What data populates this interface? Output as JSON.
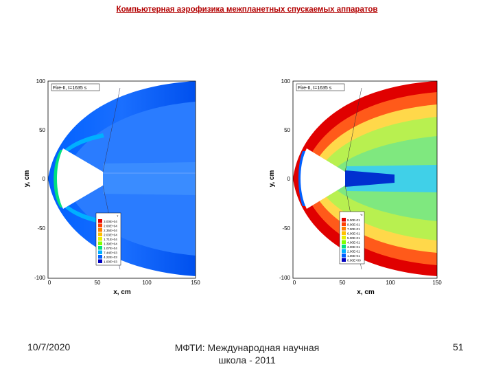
{
  "slide": {
    "title": "Компьютерная аэрофизика межпланетных спускаемых аппаратов",
    "footer_date": "10/7/2020",
    "footer_center_line1": "МФТИ: Международная научная",
    "footer_center_line2": "школа - 2011",
    "page_number": "51"
  },
  "chart_data": [
    {
      "type": "heatmap",
      "title": "Fire-II, t=1635 s",
      "xlabel": "x, cm",
      "ylabel": "y, cm",
      "xlim": [
        0,
        150
      ],
      "ylim": [
        -100,
        100
      ],
      "x_ticks": [
        "0",
        "50",
        "100",
        "150"
      ],
      "y_ticks": [
        "100",
        "50",
        "0",
        "-50",
        "-100"
      ],
      "legend_title": "T",
      "legend_position": "bottom-center",
      "legend_entries": [
        "3.00E+04",
        "2.68E+04",
        "2.35E+04",
        "2.03E+04",
        "1.71E+04",
        "1.39E+04",
        "1.07E+04",
        "7.44E+03",
        "4.22E+03",
        "1.00E+03"
      ],
      "legend_colors": [
        "#e00000",
        "#ff4000",
        "#ff8000",
        "#ffc000",
        "#e8f000",
        "#80ff00",
        "#00e080",
        "#00b0ff",
        "#0060ff",
        "#0000c0"
      ]
    },
    {
      "type": "heatmap",
      "title": "Fire-II, t=1635 s",
      "xlabel": "x, cm",
      "ylabel": "y, cm",
      "xlim": [
        0,
        150
      ],
      "ylim": [
        -100,
        100
      ],
      "x_ticks": [
        "0",
        "50",
        "100",
        "150"
      ],
      "y_ticks": [
        "100",
        "50",
        "0",
        "-50",
        "-100"
      ],
      "legend_title": "Yi",
      "legend_position": "bottom-center",
      "legend_entries": [
        "9.00E-01",
        "8.00E-01",
        "7.00E-01",
        "6.00E-01",
        "5.00E-01",
        "4.00E-01",
        "3.00E-01",
        "2.00E-01",
        "1.00E-01",
        "0.00E+00"
      ],
      "legend_colors": [
        "#e00000",
        "#ff4000",
        "#ff8000",
        "#ffc000",
        "#e8f000",
        "#80ff00",
        "#00e080",
        "#00b0ff",
        "#0060ff",
        "#0000c0"
      ]
    }
  ]
}
